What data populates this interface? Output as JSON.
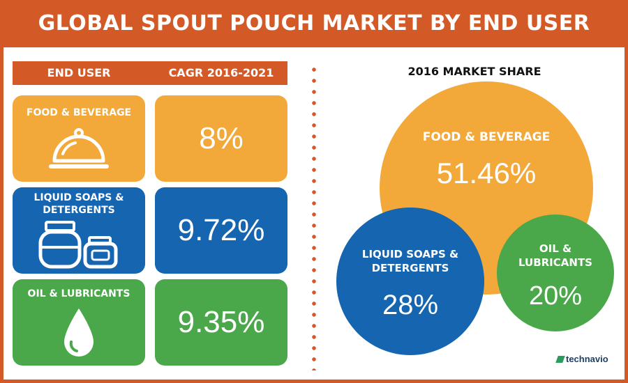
{
  "title": "GLOBAL SPOUT POUCH MARKET BY END USER",
  "table": {
    "header_end_user": "END USER",
    "header_cagr": "CAGR 2016-2021",
    "rows": [
      {
        "name_line1": "FOOD & BEVERAGE",
        "name_line2": "",
        "cagr": "8%",
        "icon": "serving-cloche-icon",
        "color": "#f3a93a"
      },
      {
        "name_line1": "LIQUID SOAPS &",
        "name_line2": "DETERGENTS",
        "cagr": "9.72%",
        "icon": "detergent-jars-icon",
        "color": "#1565b0"
      },
      {
        "name_line1": "OIL & LUBRICANTS",
        "name_line2": "",
        "cagr": "9.35%",
        "icon": "oil-drop-icon",
        "color": "#4aa84a"
      }
    ]
  },
  "market_share": {
    "title": "2016 MARKET SHARE",
    "food_label": "FOOD & BEVERAGE",
    "food_value": "51.46%",
    "soap_label_1": "LIQUID SOAPS &",
    "soap_label_2": "DETERGENTS",
    "soap_value": "28%",
    "oil_label_1": "OIL &",
    "oil_label_2": "LUBRICANTS",
    "oil_value": "20%"
  },
  "brand": "technavio",
  "chart_data": [
    {
      "type": "table",
      "title": "GLOBAL SPOUT POUCH MARKET BY END USER",
      "columns": [
        "END USER",
        "CAGR 2016-2021"
      ],
      "categories": [
        "FOOD & BEVERAGE",
        "LIQUID SOAPS & DETERGENTS",
        "OIL & LUBRICANTS"
      ],
      "values": [
        8,
        9.72,
        9.35
      ]
    },
    {
      "type": "bubble",
      "title": "2016 MARKET SHARE",
      "categories": [
        "FOOD & BEVERAGE",
        "LIQUID SOAPS & DETERGENTS",
        "OIL & LUBRICANTS"
      ],
      "values": [
        51.46,
        28,
        20
      ],
      "colors": [
        "#f3a93a",
        "#1565b0",
        "#4aa84a"
      ]
    }
  ]
}
